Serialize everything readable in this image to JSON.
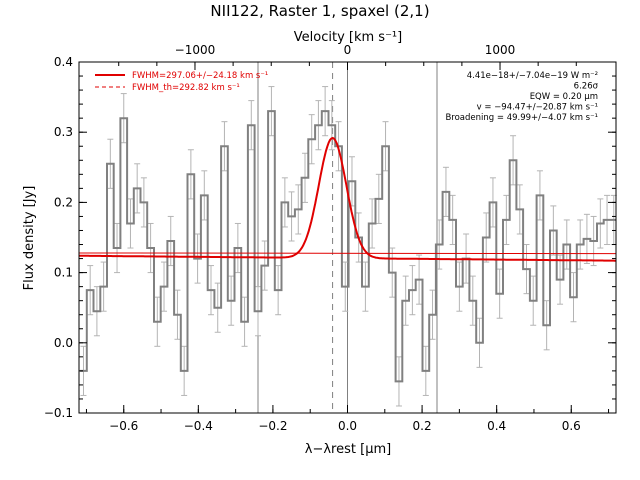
{
  "chart_data": {
    "type": "line",
    "title": "NII122, Raster 1, spaxel (2,1)",
    "xlabel": "λ−λrest [μm]",
    "ylabel": "Flux density [Jy]",
    "top_xlabel": "Velocity [km s⁻¹]",
    "xlim": [
      -0.72,
      0.72
    ],
    "ylim": [
      -0.1,
      0.4
    ],
    "xticks": [
      -0.6,
      -0.4,
      -0.2,
      0.0,
      0.2,
      0.4,
      0.6
    ],
    "xtick_labels": [
      "−0.6",
      "−0.4",
      "−0.2",
      "0.0",
      "0.2",
      "0.4",
      "0.6"
    ],
    "yticks": [
      -0.1,
      0.0,
      0.1,
      0.2,
      0.3,
      0.4
    ],
    "ytick_labels": [
      "−0.1",
      "0.0",
      "0.1",
      "0.2",
      "0.3",
      "0.4"
    ],
    "top_ticks": [
      -1000,
      0,
      1000
    ],
    "top_tick_labels": [
      "−1000",
      "0",
      "1000"
    ],
    "velocity_per_um": 2445,
    "vertical_lines": [
      -0.24,
      0.0,
      0.24
    ],
    "dashed_line_x": -0.04,
    "colors": {
      "data": "#808080",
      "errors": "#b4b4b4",
      "fit": "#e00000",
      "grid": "#808080"
    },
    "legend": {
      "position": "top-left",
      "entries": [
        {
          "label": "FWHM=297.06+/−24.18 km s⁻¹",
          "style": "solid"
        },
        {
          "label": "FWHM_th=292.82 km s⁻¹",
          "style": "dashed"
        }
      ]
    },
    "annotations": [
      "4.41e−18+/−7.04e−19 W m⁻²",
      "6.26σ",
      "EQW = 0.20 μm",
      "v = −94.47+/−20.87 km s⁻¹",
      "Broadening = 49.99+/−4.07 km s⁻¹"
    ],
    "fit": {
      "continuum_left": 0.124,
      "continuum_right": 0.117,
      "baseline_left": 0.128,
      "baseline_right": 0.127,
      "amplitude": 0.171,
      "center": -0.04,
      "sigma": 0.037
    },
    "series": [
      {
        "name": "flux",
        "x": [
          -0.708,
          -0.69,
          -0.672,
          -0.654,
          -0.636,
          -0.618,
          -0.6,
          -0.582,
          -0.564,
          -0.546,
          -0.528,
          -0.51,
          -0.492,
          -0.474,
          -0.456,
          -0.438,
          -0.42,
          -0.402,
          -0.384,
          -0.366,
          -0.348,
          -0.33,
          -0.312,
          -0.294,
          -0.276,
          -0.258,
          -0.24,
          -0.222,
          -0.204,
          -0.186,
          -0.168,
          -0.15,
          -0.132,
          -0.114,
          -0.096,
          -0.078,
          -0.06,
          -0.042,
          -0.024,
          -0.006,
          0.012,
          0.03,
          0.048,
          0.066,
          0.084,
          0.102,
          0.12,
          0.138,
          0.156,
          0.174,
          0.192,
          0.21,
          0.228,
          0.246,
          0.264,
          0.282,
          0.3,
          0.318,
          0.336,
          0.354,
          0.372,
          0.39,
          0.408,
          0.426,
          0.444,
          0.462,
          0.48,
          0.498,
          0.516,
          0.534,
          0.552,
          0.57,
          0.588,
          0.606,
          0.624,
          0.642,
          0.66,
          0.678,
          0.696,
          0.714
        ],
        "y": [
          -0.04,
          0.075,
          0.045,
          0.08,
          0.255,
          0.135,
          0.32,
          0.17,
          0.22,
          0.2,
          0.135,
          0.03,
          0.08,
          0.145,
          0.04,
          -0.04,
          0.24,
          0.12,
          0.21,
          0.075,
          0.05,
          0.28,
          0.06,
          0.135,
          0.03,
          0.31,
          0.045,
          0.11,
          0.33,
          0.075,
          0.2,
          0.18,
          0.19,
          0.235,
          0.29,
          0.31,
          0.33,
          0.31,
          0.28,
          0.08,
          0.23,
          0.15,
          0.08,
          0.17,
          0.205,
          0.28,
          0.1,
          -0.055,
          0.06,
          0.075,
          0.09,
          -0.04,
          0.04,
          0.14,
          0.215,
          0.175,
          0.08,
          0.12,
          0.06,
          0.0,
          0.15,
          0.2,
          0.07,
          0.175,
          0.26,
          0.19,
          0.105,
          0.06,
          0.21,
          0.025,
          0.16,
          0.09,
          0.14,
          0.065,
          0.14,
          0.148,
          0.145,
          0.17,
          0.175,
          0.175
        ],
        "yerr": [
          0.035,
          0.035,
          0.035,
          0.035,
          0.035,
          0.035,
          0.035,
          0.035,
          0.035,
          0.035,
          0.035,
          0.035,
          0.035,
          0.035,
          0.035,
          0.035,
          0.035,
          0.035,
          0.035,
          0.035,
          0.035,
          0.035,
          0.035,
          0.035,
          0.035,
          0.035,
          0.035,
          0.035,
          0.035,
          0.035,
          0.035,
          0.035,
          0.035,
          0.035,
          0.035,
          0.035,
          0.035,
          0.035,
          0.035,
          0.035,
          0.035,
          0.035,
          0.035,
          0.035,
          0.035,
          0.035,
          0.035,
          0.035,
          0.035,
          0.035,
          0.035,
          0.035,
          0.035,
          0.035,
          0.035,
          0.035,
          0.035,
          0.035,
          0.035,
          0.035,
          0.035,
          0.035,
          0.035,
          0.035,
          0.035,
          0.035,
          0.035,
          0.035,
          0.035,
          0.035,
          0.035,
          0.035,
          0.035,
          0.035,
          0.035,
          0.035,
          0.035,
          0.035,
          0.035,
          0.035
        ]
      }
    ]
  }
}
